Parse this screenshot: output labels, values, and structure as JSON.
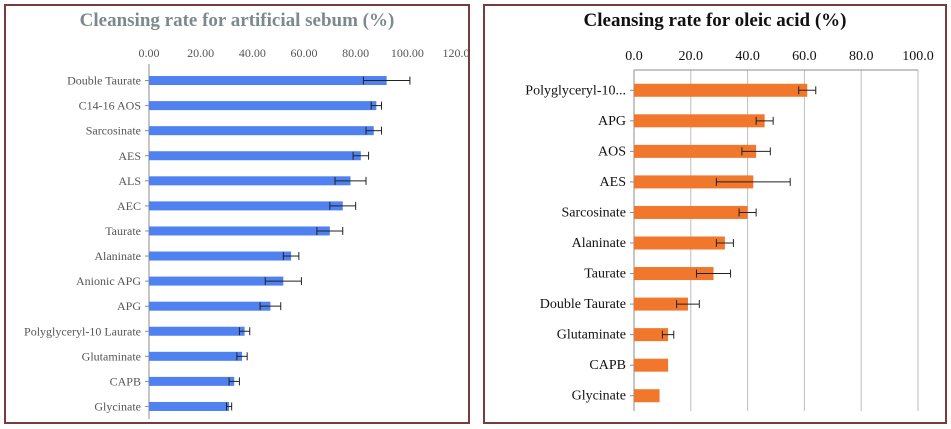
{
  "chart_data": [
    {
      "type": "bar",
      "orientation": "horizontal",
      "title": "Cleansing rate for artificial sebum (%)",
      "categories": [
        "Double Taurate",
        "C14-16 AOS",
        "Sarcosinate",
        "AES",
        "ALS",
        "AEC",
        "Taurate",
        "Alaninate",
        "Anionic APG",
        "APG",
        "Polyglyceryl-10 Laurate",
        "Glutaminate",
        "CAPB",
        "Glycinate"
      ],
      "values": [
        92,
        88,
        87,
        82,
        78,
        75,
        70,
        55,
        52,
        47,
        37,
        36,
        33,
        31
      ],
      "errors": [
        9,
        2,
        3,
        3,
        6,
        5,
        5,
        3,
        7,
        4,
        2,
        2,
        2,
        1
      ],
      "xlim": [
        0,
        120
      ],
      "xticks": [
        "0.00",
        "20.00",
        "40.00",
        "60.00",
        "80.00",
        "100.00",
        "120.00"
      ],
      "axis_position": "top",
      "grid": false,
      "color": "#4f81f0"
    },
    {
      "type": "bar",
      "orientation": "horizontal",
      "title": "Cleansing rate for oleic acid (%)",
      "categories": [
        "Polyglyceryl-10...",
        "APG",
        "AOS",
        "AES",
        "Sarcosinate",
        "Alaninate",
        "Taurate",
        "Double Taurate",
        "Glutaminate",
        "CAPB",
        "Glycinate"
      ],
      "values": [
        61,
        46,
        43,
        42,
        40,
        32,
        28,
        19,
        12,
        12,
        9
      ],
      "errors": [
        3,
        3,
        5,
        13,
        3,
        3,
        6,
        4,
        2,
        0,
        0
      ],
      "xlim": [
        0,
        100
      ],
      "xticks": [
        "0.0",
        "20.0",
        "40.0",
        "60.0",
        "80.0",
        "100.0"
      ],
      "axis_position": "top",
      "grid": true,
      "color": "#f0772b"
    }
  ]
}
